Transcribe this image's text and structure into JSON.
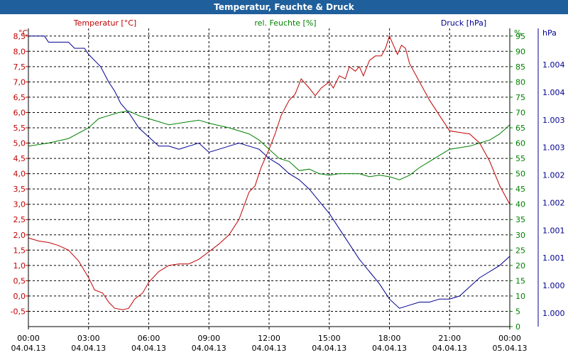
{
  "window_title": "Temperatur, Feuchte & Druck",
  "colors": {
    "temperature": "#c00000",
    "humidity": "#008000",
    "pressure": "#000090",
    "grid": "#000000",
    "titlebar": "#1f5f9c"
  },
  "chart_data": {
    "type": "line",
    "title": "Temperatur, Feuchte & Druck",
    "legend": [
      "Temperatur [°C]",
      "rel. Feuchte [%]",
      "Druck [hPa]"
    ],
    "x_ticks": [
      {
        "time": "00:00",
        "date": "04.04.13"
      },
      {
        "time": "03:00",
        "date": "04.04.13"
      },
      {
        "time": "06:00",
        "date": "04.04.13"
      },
      {
        "time": "09:00",
        "date": "04.04.13"
      },
      {
        "time": "12:00",
        "date": "04.04.13"
      },
      {
        "time": "15:00",
        "date": "04.04.13"
      },
      {
        "time": "18:00",
        "date": "04.04.13"
      },
      {
        "time": "21:00",
        "date": "04.04.13"
      },
      {
        "time": "00:00",
        "date": "05.04.13"
      }
    ],
    "x_range_hours": [
      0,
      24
    ],
    "axes": {
      "temperature": {
        "unit": "°C",
        "range": [
          -1.0,
          8.75
        ],
        "ticks": [
          "8,5",
          "8,0",
          "7,5",
          "7,0",
          "6,5",
          "6,0",
          "5,5",
          "5,0",
          "4,5",
          "4,0",
          "3,5",
          "3,0",
          "2,5",
          "2,0",
          "1,5",
          "1,0",
          "0,5",
          "0,0",
          "-0,5"
        ]
      },
      "humidity": {
        "unit": "%",
        "range": [
          0,
          97.5
        ],
        "ticks": [
          "95",
          "90",
          "85",
          "80",
          "75",
          "70",
          "65",
          "60",
          "55",
          "50",
          "45",
          "40",
          "35",
          "30",
          "25",
          "20",
          "15",
          "10",
          "5",
          "0"
        ]
      },
      "pressure": {
        "unit": "hPa",
        "ticks": [
          "1.004",
          "1.004",
          "1.003",
          "1.003",
          "1.002",
          "1.002",
          "1.001",
          "1.001",
          "1.000",
          "1.000"
        ]
      }
    },
    "series": [
      {
        "name": "Temperatur [°C]",
        "axis": "temperature",
        "points": [
          [
            0,
            1.9
          ],
          [
            0.5,
            1.8
          ],
          [
            1,
            1.75
          ],
          [
            1.5,
            1.65
          ],
          [
            2,
            1.5
          ],
          [
            2.5,
            1.15
          ],
          [
            3,
            0.6
          ],
          [
            3.3,
            0.2
          ],
          [
            3.7,
            0.1
          ],
          [
            4,
            -0.2
          ],
          [
            4.3,
            -0.4
          ],
          [
            4.7,
            -0.45
          ],
          [
            5,
            -0.4
          ],
          [
            5.3,
            -0.1
          ],
          [
            5.7,
            0.1
          ],
          [
            6,
            0.45
          ],
          [
            6.5,
            0.8
          ],
          [
            7,
            1.0
          ],
          [
            7.5,
            1.05
          ],
          [
            8,
            1.05
          ],
          [
            8.5,
            1.2
          ],
          [
            9,
            1.45
          ],
          [
            9.5,
            1.7
          ],
          [
            10,
            2.0
          ],
          [
            10.5,
            2.5
          ],
          [
            11,
            3.4
          ],
          [
            11.3,
            3.6
          ],
          [
            11.6,
            4.2
          ],
          [
            12,
            4.8
          ],
          [
            12.3,
            5.3
          ],
          [
            12.6,
            5.9
          ],
          [
            13,
            6.4
          ],
          [
            13.3,
            6.6
          ],
          [
            13.6,
            7.1
          ],
          [
            14,
            6.8
          ],
          [
            14.3,
            6.55
          ],
          [
            14.6,
            6.8
          ],
          [
            15,
            7.0
          ],
          [
            15.2,
            6.8
          ],
          [
            15.5,
            7.2
          ],
          [
            15.8,
            7.1
          ],
          [
            16,
            7.5
          ],
          [
            16.3,
            7.35
          ],
          [
            16.5,
            7.5
          ],
          [
            16.7,
            7.2
          ],
          [
            17,
            7.7
          ],
          [
            17.3,
            7.85
          ],
          [
            17.6,
            7.85
          ],
          [
            17.8,
            8.1
          ],
          [
            18,
            8.5
          ],
          [
            18.2,
            8.2
          ],
          [
            18.4,
            7.9
          ],
          [
            18.6,
            8.2
          ],
          [
            18.8,
            8.1
          ],
          [
            19,
            7.6
          ],
          [
            19.5,
            7.0
          ],
          [
            20,
            6.4
          ],
          [
            20.5,
            5.9
          ],
          [
            21,
            5.4
          ],
          [
            21.5,
            5.35
          ],
          [
            22,
            5.3
          ],
          [
            22.5,
            5.0
          ],
          [
            23,
            4.4
          ],
          [
            23.5,
            3.6
          ],
          [
            24,
            3.0
          ]
        ]
      },
      {
        "name": "rel. Feuchte [%]",
        "axis": "humidity",
        "points": [
          [
            0,
            59
          ],
          [
            1,
            60
          ],
          [
            2,
            61.5
          ],
          [
            3,
            65
          ],
          [
            3.5,
            68
          ],
          [
            4,
            69
          ],
          [
            4.5,
            70
          ],
          [
            5,
            70.5
          ],
          [
            5.5,
            69
          ],
          [
            6,
            68
          ],
          [
            7,
            66
          ],
          [
            8,
            67
          ],
          [
            8.5,
            67.5
          ],
          [
            9,
            66.5
          ],
          [
            10,
            65
          ],
          [
            11,
            63
          ],
          [
            11.5,
            61
          ],
          [
            12,
            58
          ],
          [
            12.5,
            55
          ],
          [
            13,
            54
          ],
          [
            13.5,
            51
          ],
          [
            14,
            51.5
          ],
          [
            14.5,
            50
          ],
          [
            15,
            49.5
          ],
          [
            15.5,
            50
          ],
          [
            16,
            50
          ],
          [
            16.5,
            50
          ],
          [
            17,
            49
          ],
          [
            17.5,
            49.5
          ],
          [
            18,
            49
          ],
          [
            18.5,
            48
          ],
          [
            19,
            49.5
          ],
          [
            19.5,
            52
          ],
          [
            20,
            54
          ],
          [
            20.5,
            56
          ],
          [
            21,
            58
          ],
          [
            21.5,
            58.5
          ],
          [
            22,
            59
          ],
          [
            22.5,
            60
          ],
          [
            23,
            61
          ],
          [
            23.5,
            63
          ],
          [
            24,
            66
          ]
        ]
      },
      {
        "name": "Druck [hPa]",
        "axis": "pressure",
        "display_scale": "right",
        "points": [
          [
            0,
            95
          ],
          [
            0.8,
            95
          ],
          [
            1,
            93
          ],
          [
            2,
            93
          ],
          [
            2.3,
            91
          ],
          [
            2.8,
            91
          ],
          [
            3,
            89
          ],
          [
            3.3,
            87
          ],
          [
            3.6,
            85
          ],
          [
            4,
            80
          ],
          [
            4.3,
            77
          ],
          [
            4.6,
            73
          ],
          [
            5,
            70
          ],
          [
            5.5,
            65
          ],
          [
            6,
            62
          ],
          [
            6.5,
            59
          ],
          [
            7,
            59
          ],
          [
            7.5,
            58
          ],
          [
            8,
            59
          ],
          [
            8.5,
            60
          ],
          [
            9,
            57
          ],
          [
            9.5,
            58
          ],
          [
            10,
            59
          ],
          [
            10.5,
            60
          ],
          [
            11,
            59
          ],
          [
            11.5,
            58
          ],
          [
            12,
            55
          ],
          [
            12.5,
            53
          ],
          [
            13,
            50
          ],
          [
            13.5,
            48
          ],
          [
            14,
            45
          ],
          [
            14.5,
            41
          ],
          [
            15,
            37
          ],
          [
            15.5,
            32
          ],
          [
            16,
            27
          ],
          [
            16.5,
            22
          ],
          [
            17,
            18
          ],
          [
            17.5,
            14
          ],
          [
            18,
            9
          ],
          [
            18.5,
            6
          ],
          [
            19,
            7
          ],
          [
            19.5,
            8
          ],
          [
            20,
            8
          ],
          [
            20.5,
            9
          ],
          [
            21,
            9
          ],
          [
            21.5,
            10
          ],
          [
            22,
            13
          ],
          [
            22.5,
            16
          ],
          [
            23,
            18
          ],
          [
            23.5,
            20
          ],
          [
            24,
            23
          ]
        ]
      }
    ]
  }
}
